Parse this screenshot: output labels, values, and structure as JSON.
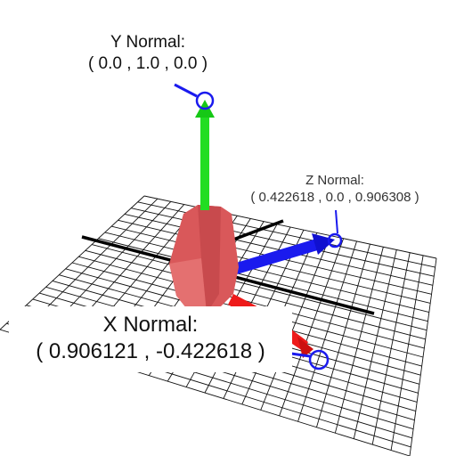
{
  "y_normal": {
    "title": "Y Normal:",
    "value": "( 0.0 , 1.0 , 0.0 )",
    "color": "#22dd22"
  },
  "z_normal": {
    "title": "Z Normal:",
    "value": "( 0.422618 , 0.0 , 0.906308 )",
    "color": "#1a1aee"
  },
  "x_normal": {
    "title": "X Normal:",
    "value": "( 0.906121 , -0.422618 )",
    "color": "#ee1a1a"
  },
  "colors": {
    "grid": "#111111",
    "axis": "#000000",
    "object": "#d9585a",
    "handle": "#1a1aee"
  }
}
